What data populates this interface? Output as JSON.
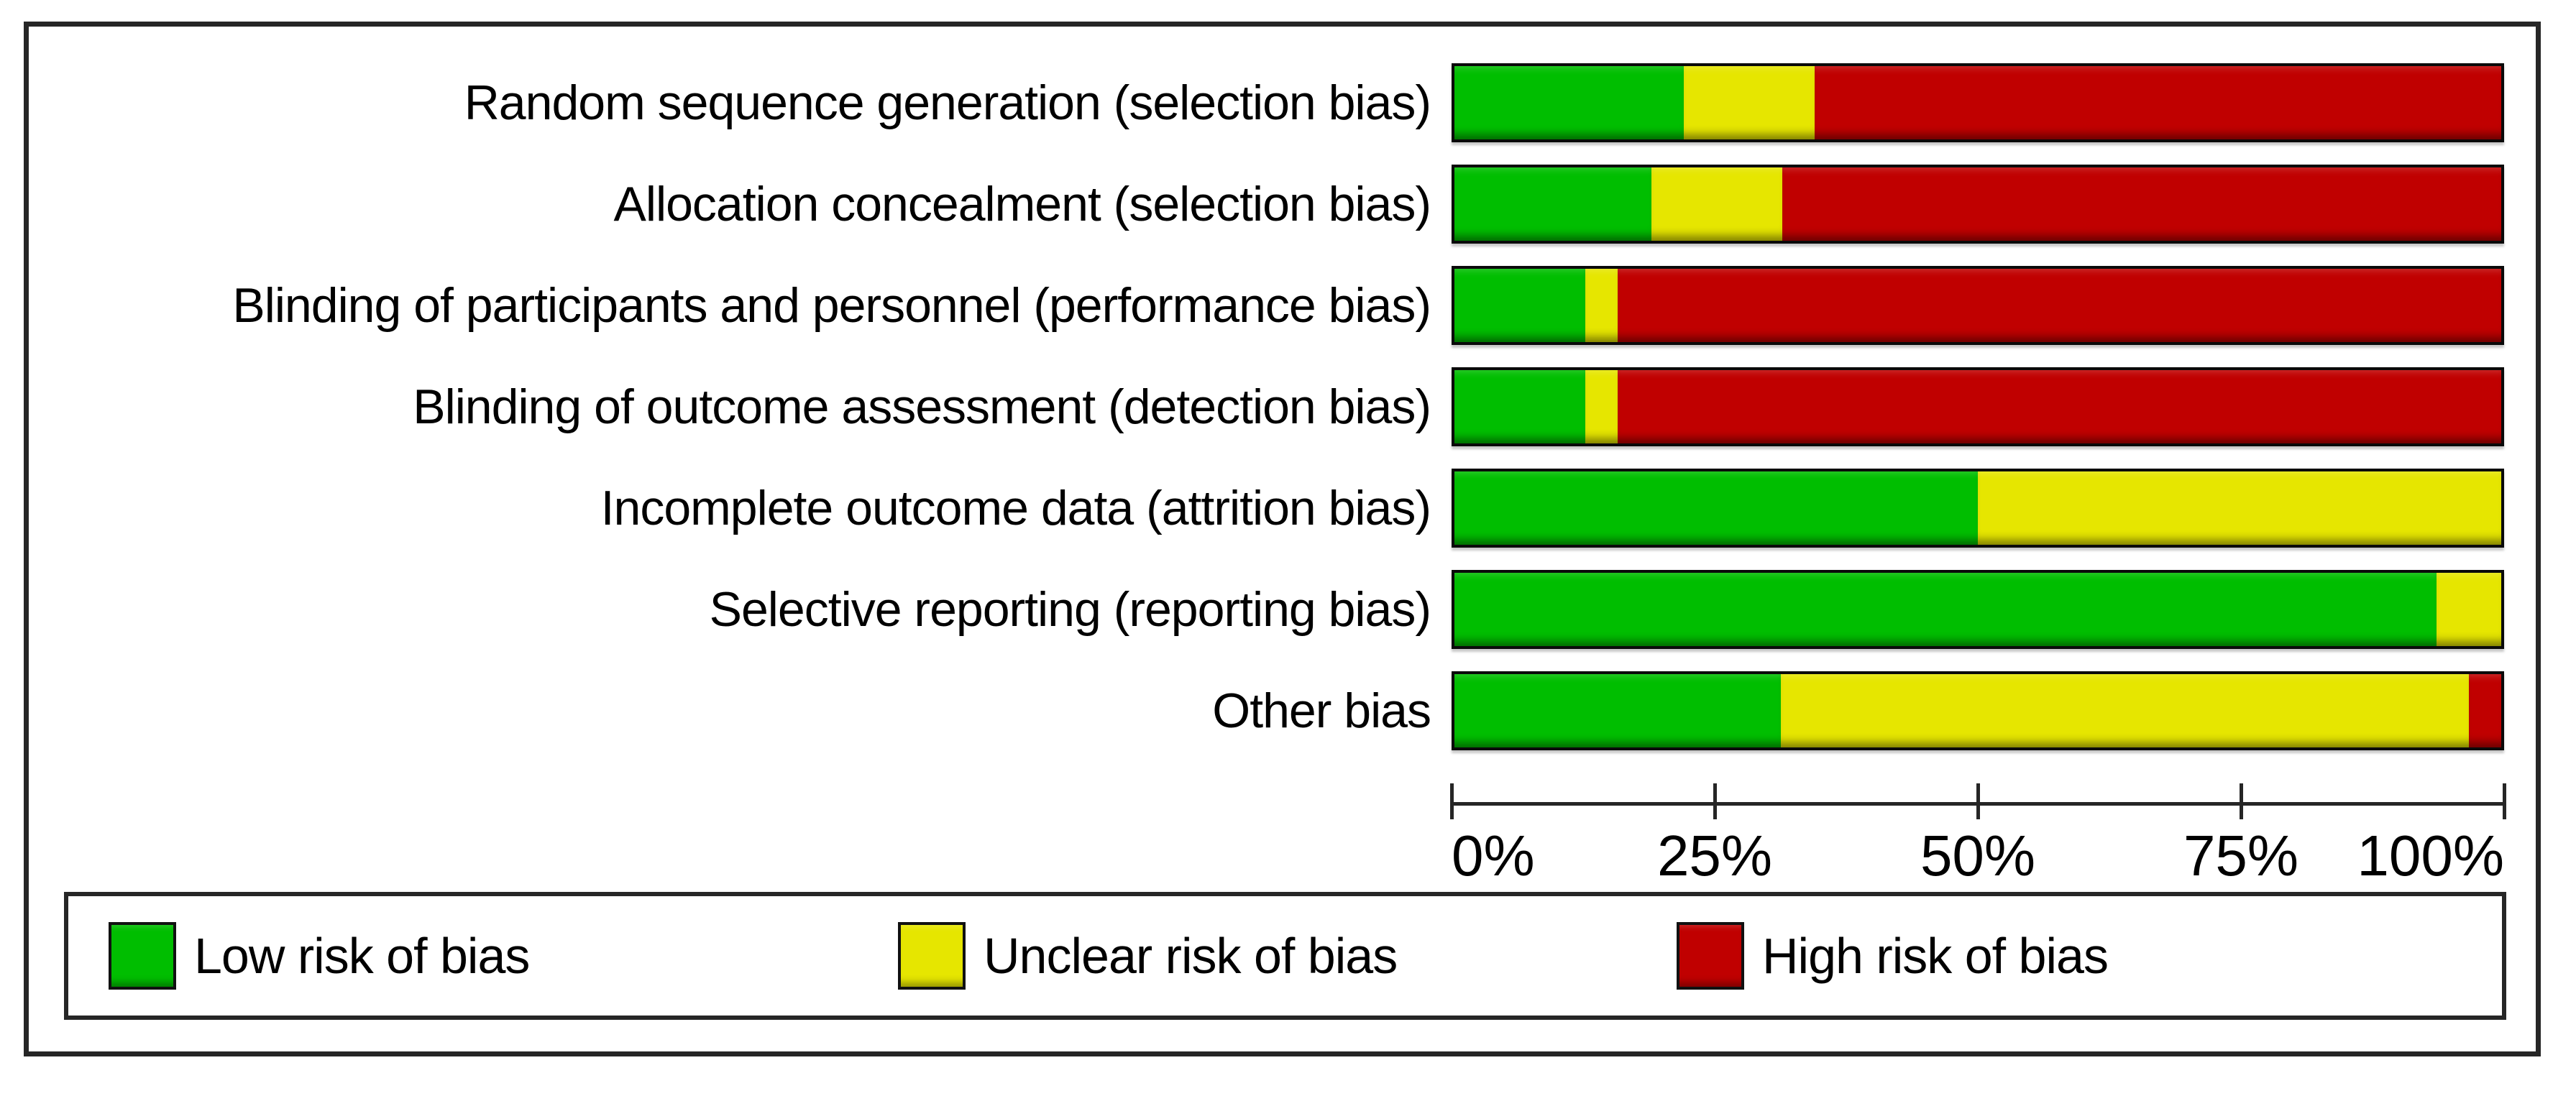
{
  "figure": {
    "kind": "risk-of-bias-graph"
  },
  "chart_data": {
    "type": "bar",
    "subtype": "horizontal-stacked-percentage",
    "title": "",
    "xlabel": "",
    "ylabel": "",
    "xlim": [
      0,
      100
    ],
    "grid": false,
    "legend_position": "bottom",
    "categories": [
      "Random sequence generation (selection bias)",
      "Allocation concealment (selection bias)",
      "Blinding of participants and personnel (performance bias)",
      "Blinding of outcome assessment (detection bias)",
      "Incomplete outcome data (attrition bias)",
      "Selective reporting (reporting bias)",
      "Other bias"
    ],
    "series": [
      {
        "name": "Low risk of bias",
        "color": "#00be00",
        "values": [
          21.9,
          18.8,
          12.5,
          12.5,
          50.0,
          93.8,
          31.2
        ]
      },
      {
        "name": "Unclear risk of bias",
        "color": "#e6e600",
        "values": [
          12.5,
          12.5,
          3.1,
          3.1,
          50.0,
          6.2,
          65.7
        ]
      },
      {
        "name": "High risk of bias",
        "color": "#c00000",
        "values": [
          65.6,
          68.7,
          84.4,
          84.4,
          0.0,
          0.0,
          3.1
        ]
      }
    ],
    "x_ticks": {
      "labels": [
        "0%",
        "25%",
        "50%",
        "75%",
        "100%"
      ],
      "values": [
        0,
        25,
        50,
        75,
        100
      ]
    }
  },
  "colors": {
    "low_risk": "#00be00",
    "unclear_risk": "#e6e600",
    "high_risk": "#c00000",
    "frame_border": "#262626",
    "bar_border": "#0a0a0a",
    "text": "#000000",
    "background": "#ffffff"
  }
}
